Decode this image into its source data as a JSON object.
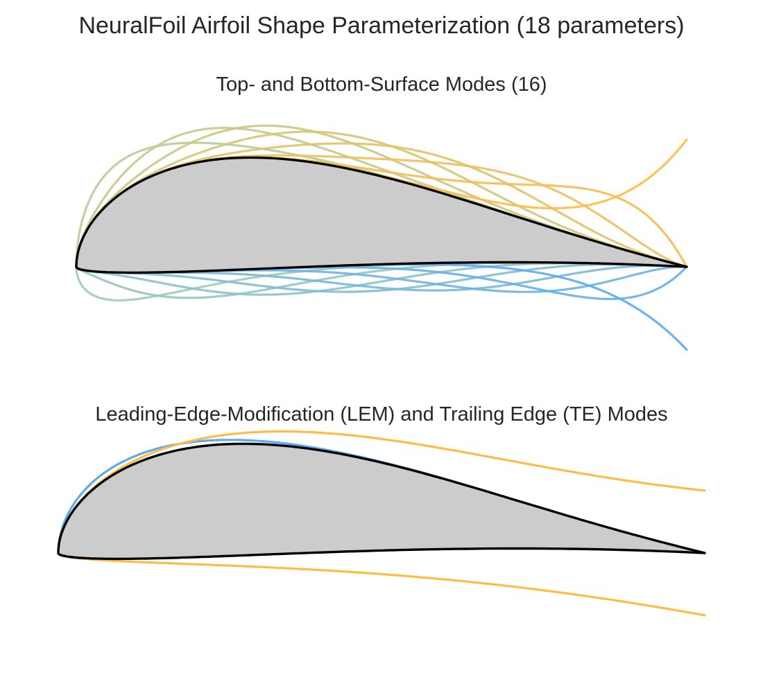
{
  "figure": {
    "title": "NeuralFoil Airfoil Shape Parameterization (18 parameters)"
  },
  "panel_modes": {
    "title": "Top- and Bottom-Surface Modes (16)",
    "top_mode_count": 8,
    "bottom_mode_count": 8
  },
  "panel_lem_te": {
    "title": "Leading-Edge-Modification (LEM) and Trailing Edge (TE) Modes"
  },
  "colors": {
    "top_mode_start": "#b8cc9a",
    "top_mode_end": "#ffbb44",
    "bottom_mode_start": "#9fcbb8",
    "bottom_mode_end": "#5aaaf2",
    "lem_mode": "#5aaaf2",
    "te_mode": "#ffbb44",
    "airfoil_fill": "#cccccc",
    "airfoil_outline": "#000000"
  }
}
